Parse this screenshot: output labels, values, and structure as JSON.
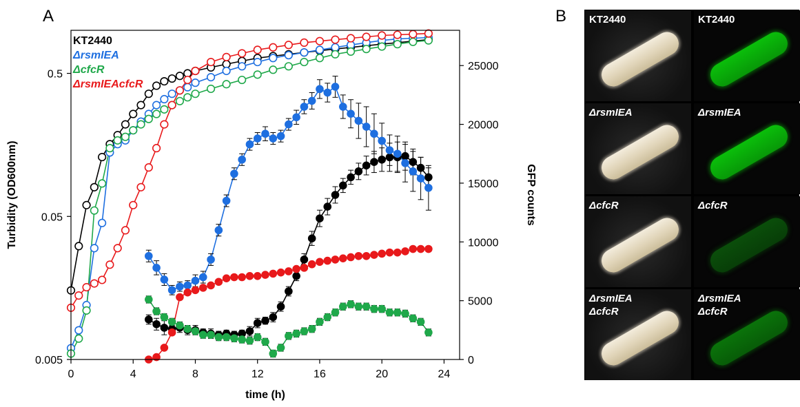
{
  "panel_a": {
    "letter": "A"
  },
  "panel_b": {
    "letter": "B",
    "rows": [
      {
        "left_label": "KT2440",
        "right_label": "KT2440",
        "italic": false,
        "fluorescence": 1.0
      },
      {
        "left_label": "ΔrsmIEA",
        "right_label": "ΔrsmIEA",
        "italic": true,
        "fluorescence": 1.0
      },
      {
        "left_label": "ΔcfcR",
        "right_label": "ΔcfcR",
        "italic": true,
        "fluorescence": 0.25
      },
      {
        "left_label": "ΔrsmIEA\nΔcfcR",
        "right_label": "ΔrsmIEA\nΔcfcR",
        "italic": true,
        "fluorescence": 0.5
      }
    ]
  },
  "chart_data": {
    "type": "scatter",
    "xlabel": "time (h)",
    "ylabel": "Turbidity (OD600nm)",
    "y2label": "GFP counts",
    "xlim": [
      0,
      25
    ],
    "ylim": [
      0.005,
      1
    ],
    "y_scale": "log",
    "y2lim": [
      0,
      28000
    ],
    "x_ticks": [
      "0",
      "4",
      "8",
      "12",
      "16",
      "20",
      "24"
    ],
    "y_ticks": [
      "0.005",
      "0.05",
      "0.5"
    ],
    "y2_ticks": [
      "0",
      "5000",
      "10000",
      "15000",
      "20000",
      "25000"
    ],
    "legend": {
      "position": "top-left",
      "entries": [
        {
          "label": "KT2440",
          "color": "#000000"
        },
        {
          "label": "ΔrsmIEA",
          "color": "#1e6fe0"
        },
        {
          "label": "ΔcfcR",
          "color": "#1fa84a"
        },
        {
          "label": "ΔrsmIEAcfcR",
          "color": "#e8191b"
        }
      ]
    },
    "series": [
      {
        "strain": "KT2440",
        "axis": "left",
        "color": "#000000",
        "marker": "open",
        "x": [
          0,
          0.5,
          1,
          1.5,
          2,
          2.5,
          3,
          3.5,
          4,
          4.5,
          5,
          5.5,
          6,
          6.5,
          7,
          7.5,
          8,
          9,
          10,
          11,
          12,
          13,
          14,
          15,
          16,
          17,
          18,
          19,
          20,
          21,
          22,
          23
        ],
        "y": [
          0.0152,
          0.031,
          0.06,
          0.08,
          0.13,
          0.16,
          0.185,
          0.22,
          0.26,
          0.3,
          0.36,
          0.41,
          0.44,
          0.46,
          0.48,
          0.5,
          0.52,
          0.55,
          0.58,
          0.61,
          0.64,
          0.66,
          0.68,
          0.7,
          0.72,
          0.74,
          0.76,
          0.78,
          0.8,
          0.82,
          0.84,
          0.86
        ]
      },
      {
        "strain": "ΔrsmIEA",
        "axis": "left",
        "color": "#1e6fe0",
        "marker": "open",
        "x": [
          0,
          0.5,
          1,
          1.5,
          2,
          2.5,
          3,
          3.5,
          4,
          4.5,
          5,
          5.5,
          6,
          6.5,
          7,
          7.5,
          8,
          9,
          10,
          11,
          12,
          13,
          14,
          15,
          16,
          17,
          18,
          19,
          20,
          21,
          22,
          23
        ],
        "y": [
          0.006,
          0.008,
          0.012,
          0.03,
          0.045,
          0.14,
          0.16,
          0.17,
          0.2,
          0.23,
          0.26,
          0.3,
          0.33,
          0.36,
          0.38,
          0.4,
          0.43,
          0.47,
          0.52,
          0.56,
          0.6,
          0.64,
          0.67,
          0.7,
          0.73,
          0.76,
          0.79,
          0.82,
          0.85,
          0.87,
          0.88,
          0.89
        ]
      },
      {
        "strain": "ΔcfcR",
        "axis": "left",
        "color": "#1fa84a",
        "marker": "open",
        "x": [
          0,
          0.5,
          1,
          1.5,
          2,
          2.5,
          3,
          3.5,
          4,
          4.5,
          5,
          5.5,
          6,
          6.5,
          7,
          7.5,
          8,
          9,
          10,
          11,
          12,
          13,
          14,
          15,
          16,
          17,
          18,
          19,
          20,
          21,
          22,
          23
        ],
        "y": [
          0.0055,
          0.007,
          0.011,
          0.055,
          0.085,
          0.15,
          0.17,
          0.18,
          0.2,
          0.22,
          0.24,
          0.26,
          0.28,
          0.3,
          0.32,
          0.34,
          0.36,
          0.39,
          0.42,
          0.45,
          0.49,
          0.53,
          0.56,
          0.6,
          0.64,
          0.68,
          0.71,
          0.74,
          0.77,
          0.8,
          0.83,
          0.85
        ]
      },
      {
        "strain": "ΔrsmIEAcfcR",
        "axis": "left",
        "color": "#e8191b",
        "marker": "open",
        "x": [
          0,
          0.5,
          1,
          1.5,
          2,
          2.5,
          3,
          3.5,
          4,
          4.5,
          5,
          5.5,
          6,
          6.5,
          7,
          7.5,
          8,
          9,
          10,
          11,
          12,
          13,
          14,
          15,
          16,
          17,
          18,
          19,
          20,
          21,
          22,
          23
        ],
        "y": [
          0.0115,
          0.014,
          0.016,
          0.017,
          0.018,
          0.023,
          0.03,
          0.04,
          0.06,
          0.08,
          0.11,
          0.15,
          0.22,
          0.3,
          0.38,
          0.45,
          0.52,
          0.6,
          0.65,
          0.69,
          0.73,
          0.76,
          0.79,
          0.82,
          0.84,
          0.86,
          0.88,
          0.9,
          0.92,
          0.93,
          0.94,
          0.95
        ]
      },
      {
        "strain": "KT2440",
        "axis": "right",
        "color": "#000000",
        "marker": "filled",
        "x": [
          5,
          5.5,
          6,
          6.5,
          7,
          7.5,
          8,
          8.5,
          9,
          9.5,
          10,
          10.5,
          11,
          11.5,
          12,
          12.5,
          13,
          13.5,
          14,
          14.5,
          15,
          15.5,
          16,
          16.5,
          17,
          17.5,
          18,
          18.5,
          19,
          19.5,
          20,
          20.5,
          21,
          21.5,
          22,
          22.5,
          23
        ],
        "y": [
          3400,
          3000,
          2700,
          2600,
          2700,
          2500,
          2500,
          2300,
          2200,
          2100,
          2200,
          2100,
          2200,
          2400,
          3100,
          3300,
          3600,
          4500,
          5800,
          7100,
          8500,
          10300,
          12000,
          13000,
          14000,
          14800,
          15500,
          16000,
          16500,
          16800,
          17000,
          17200,
          17200,
          17300,
          16800,
          16300,
          15500
        ],
        "err": [
          400,
          500,
          600,
          400,
          400,
          400,
          400,
          300,
          400,
          300,
          300,
          300,
          300,
          400,
          400,
          300,
          400,
          400,
          400,
          400,
          500,
          600,
          700,
          700,
          700,
          600,
          600,
          700,
          800,
          900,
          1000,
          1200,
          1300,
          1200,
          1100,
          900,
          800
        ]
      },
      {
        "strain": "ΔrsmIEA",
        "axis": "right",
        "color": "#1e6fe0",
        "marker": "filled",
        "x": [
          5,
          5.5,
          6,
          6.5,
          7,
          7.5,
          8,
          8.5,
          9,
          9.5,
          10,
          10.5,
          11,
          11.5,
          12,
          12.5,
          13,
          13.5,
          14,
          14.5,
          15,
          15.5,
          16,
          16.5,
          17,
          17.5,
          18,
          18.5,
          19,
          19.5,
          20,
          20.5,
          21,
          21.5,
          22,
          22.5,
          23
        ],
        "y": [
          8800,
          7800,
          6800,
          5900,
          6200,
          6300,
          6700,
          7000,
          8500,
          11000,
          13500,
          15800,
          17000,
          18300,
          18800,
          19200,
          18800,
          19000,
          20000,
          20600,
          21500,
          22000,
          23000,
          22700,
          23200,
          21500,
          20900,
          20300,
          19800,
          19200,
          18600,
          17800,
          17500,
          16700,
          16000,
          15400,
          14600
        ],
        "err": [
          500,
          600,
          500,
          400,
          400,
          400,
          500,
          500,
          500,
          500,
          500,
          500,
          500,
          500,
          500,
          600,
          500,
          500,
          500,
          600,
          600,
          700,
          800,
          800,
          900,
          1000,
          1200,
          1500,
          1700,
          1700,
          1500,
          1300,
          1500,
          1600,
          1700,
          1800,
          1900
        ]
      },
      {
        "strain": "ΔcfcR",
        "axis": "right",
        "color": "#1fa84a",
        "marker": "filled",
        "x": [
          5,
          5.5,
          6,
          6.5,
          7,
          7.5,
          8,
          8.5,
          9,
          9.5,
          10,
          10.5,
          11,
          11.5,
          12,
          12.5,
          13,
          13.5,
          14,
          14.5,
          15,
          15.5,
          16,
          16.5,
          17,
          17.5,
          18,
          18.5,
          19,
          19.5,
          20,
          20.5,
          21,
          21.5,
          22,
          22.5,
          23
        ],
        "y": [
          5100,
          4100,
          3600,
          3200,
          2900,
          2600,
          2400,
          2100,
          2100,
          1900,
          1900,
          1800,
          1700,
          1600,
          1900,
          1500,
          500,
          1000,
          2000,
          2200,
          2400,
          2600,
          3200,
          3600,
          4000,
          4500,
          4700,
          4500,
          4500,
          4300,
          4300,
          4000,
          4000,
          3900,
          3500,
          3200,
          2300
        ],
        "err": [
          300,
          300,
          300,
          300,
          300,
          300,
          300,
          300,
          300,
          300,
          300,
          300,
          300,
          300,
          300,
          300,
          300,
          300,
          300,
          300,
          300,
          300,
          300,
          300,
          300,
          300,
          300,
          300,
          300,
          300,
          300,
          300,
          300,
          300,
          300,
          300,
          300
        ]
      },
      {
        "strain": "ΔrsmIEAcfcR",
        "axis": "right",
        "color": "#e8191b",
        "marker": "filled",
        "x": [
          5,
          5.5,
          6,
          6.5,
          7,
          7.5,
          8,
          8.5,
          9,
          9.5,
          10,
          10.5,
          11,
          11.5,
          12,
          12.5,
          13,
          13.5,
          14,
          14.5,
          15,
          15.5,
          16,
          16.5,
          17,
          17.5,
          18,
          18.5,
          19,
          19.5,
          20,
          20.5,
          21,
          21.5,
          22,
          22.5,
          23
        ],
        "y": [
          0,
          200,
          1000,
          2300,
          5300,
          5700,
          5900,
          6100,
          6300,
          6600,
          6900,
          7000,
          7000,
          7100,
          7100,
          7200,
          7300,
          7400,
          7500,
          7700,
          7800,
          8100,
          8300,
          8400,
          8500,
          8600,
          8700,
          8800,
          8800,
          8900,
          9000,
          9100,
          9100,
          9200,
          9400,
          9400,
          9400
        ],
        "err": [
          200,
          200,
          200,
          200,
          200,
          200,
          200,
          200,
          200,
          200,
          200,
          200,
          200,
          200,
          200,
          200,
          200,
          200,
          200,
          200,
          200,
          200,
          200,
          200,
          200,
          200,
          200,
          200,
          200,
          200,
          200,
          200,
          200,
          200,
          200,
          200,
          200
        ]
      }
    ]
  }
}
